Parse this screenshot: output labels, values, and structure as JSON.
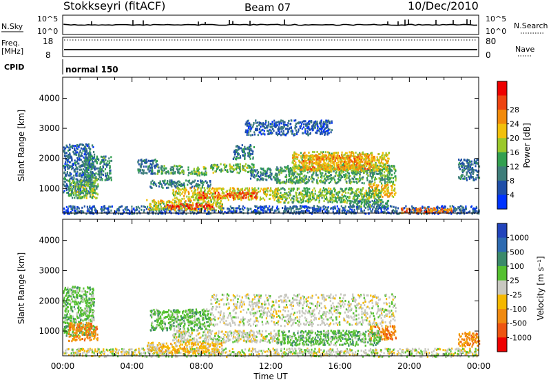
{
  "header": {
    "station": "Stokkseyri (fitACF)",
    "beam": "Beam 07",
    "date": "10/Dec/2010"
  },
  "summary_panels": {
    "nsky_label": "N.Sky",
    "nsky_top_tick": "10^5",
    "nsky_bottom_tick": "10^0",
    "nsearch_label": "N.Search",
    "nsearch_top_tick": "10^5",
    "nsearch_bottom_tick": "10^0",
    "freq_label": "Freq.",
    "freq_unit": "[MHz]",
    "freq_top_tick": "18",
    "freq_bottom_tick": "8",
    "nave_label": "Nave",
    "nave_top_tick": "80",
    "nave_bottom_tick": "0",
    "cpid_label": "CPID",
    "cpid_value": "normal 150"
  },
  "colors": {
    "power_scale": [
      "#0033ff",
      "#1f4fa8",
      "#3e7d7a",
      "#33a050",
      "#9ac82a",
      "#f2c00a",
      "#f28a0a",
      "#ee4411",
      "#ee0000"
    ],
    "velocity_scale": [
      "#2244bb",
      "#2d6ab0",
      "#3b8a6a",
      "#55c030",
      "#c8c8c0",
      "#f5b800",
      "#f08a10",
      "#ee5511",
      "#ee0000"
    ]
  },
  "chart_data": [
    {
      "type": "heatmap",
      "panel": "power",
      "xlabel": "Time UT",
      "ylabel": "Slant Range [km]",
      "x_ticks": [
        "00:00",
        "04:00",
        "08:00",
        "12:00",
        "16:00",
        "20:00",
        "00:00"
      ],
      "x_range_hours": [
        0,
        24
      ],
      "y_ticks": [
        1000,
        2000,
        3000,
        4000
      ],
      "y_range_km": [
        180,
        4700
      ],
      "colorbar_label": "Power [dB]",
      "colorbar_ticks": [
        "4",
        "8",
        "12",
        "16",
        "20",
        "24",
        "28"
      ],
      "colorbar_range": [
        0,
        32
      ],
      "regions": [
        {
          "t0": 0.0,
          "t1": 1.8,
          "r0": 850,
          "r1": 2500,
          "value": 7
        },
        {
          "t0": 1.2,
          "t1": 2.8,
          "r0": 1300,
          "r1": 2100,
          "value": 10
        },
        {
          "t0": 0.3,
          "t1": 2.0,
          "r0": 700,
          "r1": 1300,
          "value": 14
        },
        {
          "t0": 0.0,
          "t1": 24.0,
          "r0": 180,
          "r1": 450,
          "value": 6
        },
        {
          "t0": 4.3,
          "t1": 5.5,
          "r0": 1500,
          "r1": 2000,
          "value": 8
        },
        {
          "t0": 5.3,
          "t1": 7.0,
          "r0": 1500,
          "r1": 1800,
          "value": 12
        },
        {
          "t0": 5.0,
          "t1": 8.5,
          "r0": 1050,
          "r1": 1300,
          "value": 9
        },
        {
          "t0": 7.2,
          "t1": 8.3,
          "r0": 1450,
          "r1": 1750,
          "value": 14
        },
        {
          "t0": 8.5,
          "t1": 11.0,
          "r0": 1550,
          "r1": 1850,
          "value": 14
        },
        {
          "t0": 10.8,
          "t1": 12.5,
          "r0": 1300,
          "r1": 1700,
          "value": 9
        },
        {
          "t0": 12.3,
          "t1": 19.2,
          "r0": 1200,
          "r1": 1800,
          "value": 12
        },
        {
          "t0": 13.2,
          "t1": 18.8,
          "r0": 1600,
          "r1": 2250,
          "value": 18
        },
        {
          "t0": 13.8,
          "t1": 18.0,
          "r0": 1650,
          "r1": 2150,
          "value": 22
        },
        {
          "t0": 17.6,
          "t1": 19.2,
          "r0": 750,
          "r1": 1200,
          "value": 20
        },
        {
          "t0": 6.3,
          "t1": 12.5,
          "r0": 650,
          "r1": 1050,
          "value": 18
        },
        {
          "t0": 7.8,
          "t1": 11.2,
          "r0": 700,
          "r1": 900,
          "value": 26
        },
        {
          "t0": 4.8,
          "t1": 9.2,
          "r0": 300,
          "r1": 650,
          "value": 18
        },
        {
          "t0": 6.0,
          "t1": 8.6,
          "r0": 350,
          "r1": 520,
          "value": 28
        },
        {
          "t0": 12.3,
          "t1": 18.3,
          "r0": 550,
          "r1": 1050,
          "value": 14
        },
        {
          "t0": 16.5,
          "t1": 18.8,
          "r0": 400,
          "r1": 650,
          "value": 10
        },
        {
          "t0": 19.5,
          "t1": 22.5,
          "r0": 200,
          "r1": 380,
          "value": 24
        },
        {
          "t0": 22.8,
          "t1": 24.0,
          "r0": 1300,
          "r1": 2000,
          "value": 8
        },
        {
          "t0": 10.5,
          "t1": 15.5,
          "r0": 2800,
          "r1": 3300,
          "value": 6
        },
        {
          "t0": 9.8,
          "t1": 11.0,
          "r0": 2000,
          "r1": 2500,
          "value": 8
        }
      ]
    },
    {
      "type": "heatmap",
      "panel": "velocity",
      "xlabel": "Time UT",
      "ylabel": "Slant Range [km]",
      "x_ticks": [
        "00:00",
        "04:00",
        "08:00",
        "12:00",
        "16:00",
        "20:00",
        "00:00"
      ],
      "x_range_hours": [
        0,
        24
      ],
      "y_ticks": [
        1000,
        2000,
        3000,
        4000
      ],
      "y_range_km": [
        180,
        4700
      ],
      "colorbar_label": "Velocity [m s⁻¹]",
      "colorbar_ticks": [
        "1000",
        "500",
        "100",
        "25",
        "-25",
        "-100",
        "-500",
        "-1000"
      ],
      "regions": [
        {
          "t0": 0.0,
          "t1": 1.8,
          "r0": 850,
          "r1": 2500,
          "value": "approaching-weak"
        },
        {
          "t0": 0.3,
          "t1": 2.0,
          "r0": 700,
          "r1": 1300,
          "value": "receding-moderate"
        },
        {
          "t0": 0.0,
          "t1": 24.0,
          "r0": 180,
          "r1": 450,
          "value": "low"
        },
        {
          "t0": 5.0,
          "t1": 8.5,
          "r0": 1050,
          "r1": 1750,
          "value": "approaching-weak"
        },
        {
          "t0": 6.3,
          "t1": 12.5,
          "r0": 650,
          "r1": 1050,
          "value": "near-zero"
        },
        {
          "t0": 8.5,
          "t1": 19.2,
          "r0": 1200,
          "r1": 2250,
          "value": "near-zero"
        },
        {
          "t0": 4.8,
          "t1": 9.2,
          "r0": 300,
          "r1": 650,
          "value": "receding-weak"
        },
        {
          "t0": 17.6,
          "t1": 19.2,
          "r0": 750,
          "r1": 1200,
          "value": "receding-moderate"
        },
        {
          "t0": 12.3,
          "t1": 18.3,
          "r0": 550,
          "r1": 1050,
          "value": "approaching-weak"
        },
        {
          "t0": 22.8,
          "t1": 24.0,
          "r0": 500,
          "r1": 1000,
          "value": "receding-moderate"
        }
      ]
    }
  ]
}
